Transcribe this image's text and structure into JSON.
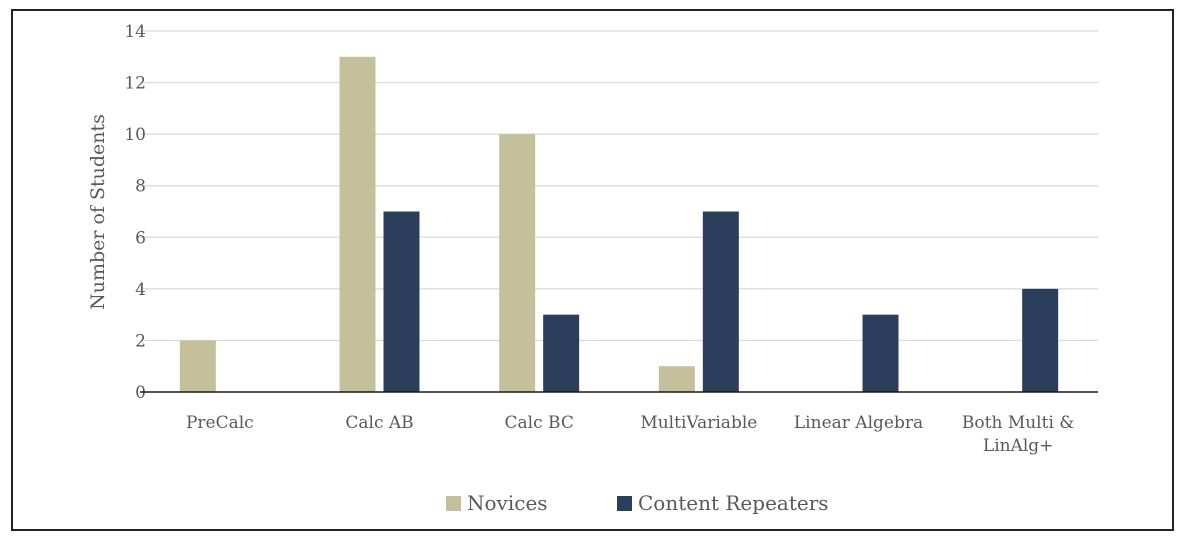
{
  "chart_data": {
    "type": "bar",
    "title": "",
    "xlabel": "",
    "ylabel": "Number of Students",
    "ylim": [
      0,
      14
    ],
    "yticks": [
      0,
      2,
      4,
      6,
      8,
      10,
      12,
      14
    ],
    "grid": true,
    "legend_position": "bottom",
    "categories": [
      [
        "PreCalc"
      ],
      [
        "Calc AB"
      ],
      [
        "Calc BC"
      ],
      [
        "MultiVariable"
      ],
      [
        "Linear Algebra"
      ],
      [
        "Both Multi &",
        "LinAlg+"
      ]
    ],
    "series": [
      {
        "name": "Novices",
        "color": "#c5c09c",
        "values": [
          2,
          13,
          10,
          1,
          0,
          0
        ]
      },
      {
        "name": "Content Repeaters",
        "color": "#2b3f5c",
        "values": [
          0,
          7,
          3,
          7,
          3,
          4
        ]
      }
    ]
  }
}
